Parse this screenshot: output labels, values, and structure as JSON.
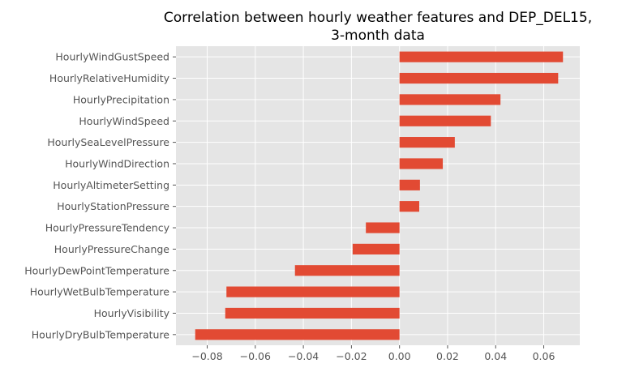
{
  "chart_data": {
    "type": "bar",
    "orientation": "horizontal",
    "title": [
      "Correlation between hourly weather features and DEP_DEL15,",
      "3-month data"
    ],
    "xlabel": "",
    "ylabel": "",
    "grid": true,
    "xlim": [
      -0.093,
      0.075
    ],
    "xticks": [
      -0.08,
      -0.06,
      -0.04,
      -0.02,
      0.0,
      0.02,
      0.04,
      0.06
    ],
    "xtick_labels": [
      "−0.08",
      "−0.06",
      "−0.04",
      "−0.02",
      "0.00",
      "0.02",
      "0.04",
      "0.06"
    ],
    "bar_color": "#E24A33",
    "background_color": "#E5E5E5",
    "categories": [
      "HourlyWindGustSpeed",
      "HourlyRelativeHumidity",
      "HourlyPrecipitation",
      "HourlyWindSpeed",
      "HourlySeaLevelPressure",
      "HourlyWindDirection",
      "HourlyAltimeterSetting",
      "HourlyStationPressure",
      "HourlyPressureTendency",
      "HourlyPressureChange",
      "HourlyDewPointTemperature",
      "HourlyWetBulbTemperature",
      "HourlyVisibility",
      "HourlyDryBulbTemperature"
    ],
    "values": [
      0.068,
      0.066,
      0.042,
      0.038,
      0.023,
      0.018,
      0.0085,
      0.0082,
      -0.014,
      -0.0195,
      -0.0435,
      -0.072,
      -0.0725,
      -0.085
    ]
  }
}
